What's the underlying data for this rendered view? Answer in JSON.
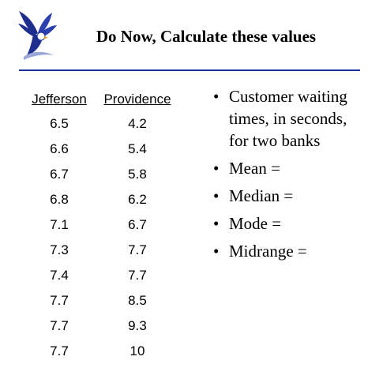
{
  "slide": {
    "title": "Do Now, Calculate these values",
    "logo_icon": "eagle-icon"
  },
  "table": {
    "headers": [
      "Jefferson",
      "Providence"
    ],
    "jefferson": [
      "6.5",
      "6.6",
      "6.7",
      "6.8",
      "7.1",
      "7.3",
      "7.4",
      "7.7",
      "7.7",
      "7.7"
    ],
    "providence": [
      "4.2",
      "5.4",
      "5.8",
      "6.2",
      "6.7",
      "7.7",
      "7.7",
      "8.5",
      "9.3",
      "10"
    ]
  },
  "bullets": [
    "Customer waiting times, in seconds, for two banks",
    "Mean =",
    "Median =",
    "Mode =",
    "Midrange ="
  ],
  "colors": {
    "rule": "#1c2f9a",
    "eagle_blue": "#1d2e8f"
  }
}
